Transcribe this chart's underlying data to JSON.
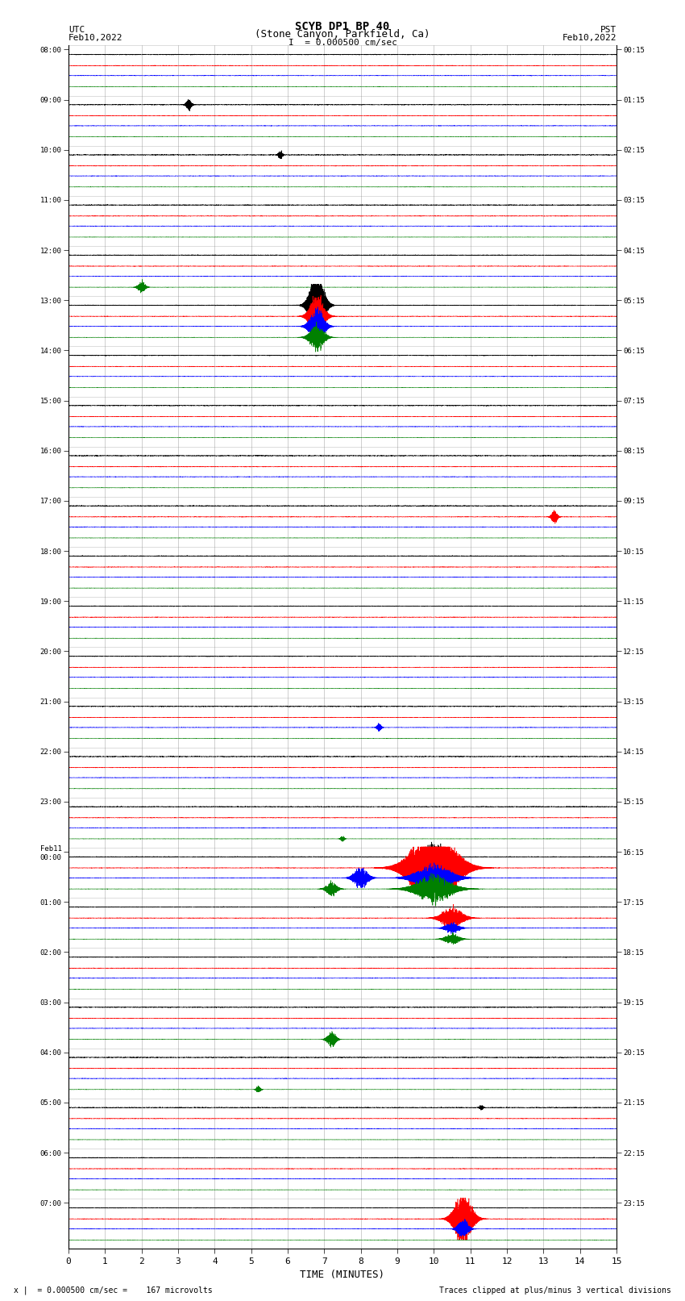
{
  "title_line1": "SCYB DP1 BP 40",
  "title_line2": "(Stone Canyon, Parkfield, Ca)",
  "scale_text": "I  = 0.000500 cm/sec",
  "left_label": "UTC",
  "left_date": "Feb10,2022",
  "right_label": "PST",
  "right_date": "Feb10,2022",
  "bottom_note_left": "x |  = 0.000500 cm/sec =    167 microvolts",
  "bottom_note_right": "Traces clipped at plus/minus 3 vertical divisions",
  "xlabel": "TIME (MINUTES)",
  "n_rows": 24,
  "n_minutes": 15,
  "sample_rate": 40,
  "figsize": [
    8.5,
    16.13
  ],
  "dpi": 100,
  "utc_labels": [
    "08:00",
    "09:00",
    "10:00",
    "11:00",
    "12:00",
    "13:00",
    "14:00",
    "15:00",
    "16:00",
    "17:00",
    "18:00",
    "19:00",
    "20:00",
    "21:00",
    "22:00",
    "23:00",
    "Feb11\n00:00",
    "01:00",
    "02:00",
    "03:00",
    "04:00",
    "05:00",
    "06:00",
    "07:00"
  ],
  "pst_labels": [
    "00:15",
    "01:15",
    "02:15",
    "03:15",
    "04:15",
    "05:15",
    "06:15",
    "07:15",
    "08:15",
    "09:15",
    "10:15",
    "11:15",
    "12:15",
    "13:15",
    "14:15",
    "15:15",
    "16:15",
    "17:15",
    "18:15",
    "19:15",
    "20:15",
    "21:15",
    "22:15",
    "23:15"
  ],
  "ch_colors": [
    "black",
    "red",
    "blue",
    "green"
  ],
  "ch_offsets": [
    0.82,
    0.6,
    0.4,
    0.18
  ],
  "noise_amps": [
    0.06,
    0.04,
    0.035,
    0.025
  ],
  "trace_scale": 0.14,
  "clip_divisions": 3,
  "background_color": "white",
  "grid_color": "#888888",
  "events": [
    {
      "row": 1,
      "minute": 3.3,
      "amp": 0.6,
      "ch": 0,
      "dur_sec": 8
    },
    {
      "row": 2,
      "minute": 5.8,
      "amp": 0.5,
      "ch": 0,
      "dur_sec": 6
    },
    {
      "row": 4,
      "minute": 2.0,
      "amp": 0.7,
      "ch": 3,
      "dur_sec": 10
    },
    {
      "row": 5,
      "minute": 6.8,
      "amp": 4.0,
      "ch": 0,
      "dur_sec": 20
    },
    {
      "row": 5,
      "minute": 6.8,
      "amp": 2.5,
      "ch": 1,
      "dur_sec": 20
    },
    {
      "row": 5,
      "minute": 6.8,
      "amp": 2.0,
      "ch": 2,
      "dur_sec": 20
    },
    {
      "row": 5,
      "minute": 6.8,
      "amp": 1.5,
      "ch": 3,
      "dur_sec": 20
    },
    {
      "row": 9,
      "minute": 13.3,
      "amp": 0.8,
      "ch": 1,
      "dur_sec": 8
    },
    {
      "row": 13,
      "minute": 8.5,
      "amp": 0.5,
      "ch": 2,
      "dur_sec": 6
    },
    {
      "row": 15,
      "minute": 7.5,
      "amp": 0.35,
      "ch": 3,
      "dur_sec": 5
    },
    {
      "row": 16,
      "minute": 7.2,
      "amp": 0.8,
      "ch": 3,
      "dur_sec": 15
    },
    {
      "row": 16,
      "minute": 8.0,
      "amp": 1.2,
      "ch": 2,
      "dur_sec": 20
    },
    {
      "row": 16,
      "minute": 10.0,
      "amp": 5.0,
      "ch": 1,
      "dur_sec": 60
    },
    {
      "row": 16,
      "minute": 10.0,
      "amp": 1.5,
      "ch": 0,
      "dur_sec": 30
    },
    {
      "row": 16,
      "minute": 10.0,
      "amp": 1.5,
      "ch": 2,
      "dur_sec": 50
    },
    {
      "row": 16,
      "minute": 10.0,
      "amp": 1.5,
      "ch": 3,
      "dur_sec": 50
    },
    {
      "row": 17,
      "minute": 10.5,
      "amp": 1.2,
      "ch": 1,
      "dur_sec": 30
    },
    {
      "row": 17,
      "minute": 10.5,
      "amp": 0.6,
      "ch": 2,
      "dur_sec": 20
    },
    {
      "row": 17,
      "minute": 10.5,
      "amp": 0.6,
      "ch": 3,
      "dur_sec": 20
    },
    {
      "row": 19,
      "minute": 7.2,
      "amp": 0.9,
      "ch": 3,
      "dur_sec": 12
    },
    {
      "row": 20,
      "minute": 5.2,
      "amp": 0.4,
      "ch": 3,
      "dur_sec": 6
    },
    {
      "row": 21,
      "minute": 11.3,
      "amp": 0.3,
      "ch": 0,
      "dur_sec": 5
    },
    {
      "row": 23,
      "minute": 10.8,
      "amp": 3.0,
      "ch": 1,
      "dur_sec": 25
    },
    {
      "row": 23,
      "minute": 10.8,
      "amp": 1.0,
      "ch": 2,
      "dur_sec": 15
    }
  ]
}
